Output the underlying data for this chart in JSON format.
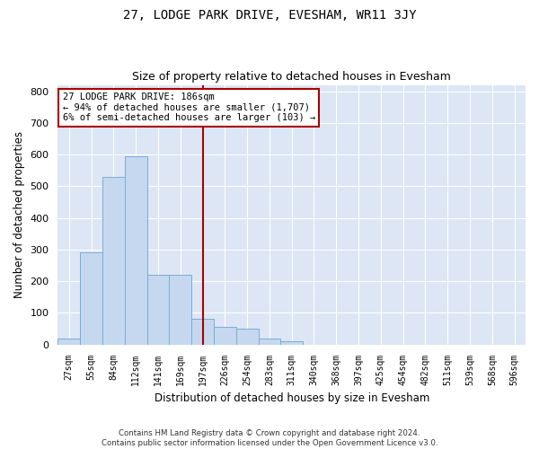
{
  "title": "27, LODGE PARK DRIVE, EVESHAM, WR11 3JY",
  "subtitle": "Size of property relative to detached houses in Evesham",
  "xlabel": "Distribution of detached houses by size in Evesham",
  "ylabel": "Number of detached properties",
  "bar_labels": [
    "27sqm",
    "55sqm",
    "84sqm",
    "112sqm",
    "141sqm",
    "169sqm",
    "197sqm",
    "226sqm",
    "254sqm",
    "283sqm",
    "311sqm",
    "340sqm",
    "368sqm",
    "397sqm",
    "425sqm",
    "454sqm",
    "482sqm",
    "511sqm",
    "539sqm",
    "568sqm",
    "596sqm"
  ],
  "bar_values": [
    20,
    290,
    530,
    595,
    220,
    220,
    80,
    55,
    50,
    20,
    10,
    0,
    0,
    0,
    0,
    0,
    0,
    0,
    0,
    0,
    0
  ],
  "bar_color": "#c5d8ef",
  "bar_edge_color": "#7aadd4",
  "vline_index": 6,
  "vline_color": "#aa0000",
  "annotation_text": "27 LODGE PARK DRIVE: 186sqm\n← 94% of detached houses are smaller (1,707)\n6% of semi-detached houses are larger (103) →",
  "annotation_box_color": "#ffffff",
  "annotation_box_edge": "#aa0000",
  "ylim": [
    0,
    820
  ],
  "yticks": [
    0,
    100,
    200,
    300,
    400,
    500,
    600,
    700,
    800
  ],
  "bg_color": "#dce6f5",
  "footer": "Contains HM Land Registry data © Crown copyright and database right 2024.\nContains public sector information licensed under the Open Government Licence v3.0.",
  "title_fontsize": 10,
  "subtitle_fontsize": 9,
  "xlabel_fontsize": 8.5,
  "ylabel_fontsize": 8.5
}
